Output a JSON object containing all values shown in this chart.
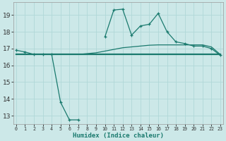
{
  "xlabel": "Humidex (Indice chaleur)",
  "x": [
    0,
    1,
    2,
    3,
    4,
    5,
    6,
    7,
    8,
    9,
    10,
    11,
    12,
    13,
    14,
    15,
    16,
    17,
    18,
    19,
    20,
    21,
    22,
    23
  ],
  "line1_y": [
    16.9,
    16.8,
    16.65,
    16.65,
    16.65,
    13.8,
    12.75,
    12.75,
    null,
    null,
    17.7,
    19.3,
    19.35,
    17.8,
    18.35,
    18.45,
    19.1,
    18.0,
    17.4,
    17.3,
    17.15,
    17.15,
    17.0,
    16.6
  ],
  "line2_y": [
    16.65,
    16.65,
    16.65,
    16.65,
    16.65,
    16.65,
    16.65,
    16.65,
    16.65,
    16.65,
    16.65,
    16.65,
    16.65,
    16.65,
    16.65,
    16.65,
    16.65,
    16.65,
    16.65,
    16.65,
    16.65,
    16.65,
    16.65,
    16.65
  ],
  "line3_y": [
    16.65,
    16.65,
    16.65,
    16.65,
    16.65,
    16.65,
    16.65,
    16.65,
    16.7,
    16.75,
    16.85,
    16.95,
    17.05,
    17.1,
    17.15,
    17.2,
    17.22,
    17.22,
    17.22,
    17.22,
    17.22,
    17.22,
    17.1,
    16.65
  ],
  "bg_color": "#cce8e8",
  "grid_color": "#b0d8d8",
  "line_color": "#1a7a6e",
  "ylim": [
    12.5,
    19.75
  ],
  "yticks": [
    13,
    14,
    15,
    16,
    17,
    18,
    19
  ],
  "xticks": [
    0,
    1,
    2,
    3,
    4,
    5,
    6,
    7,
    8,
    9,
    10,
    11,
    12,
    13,
    14,
    15,
    16,
    17,
    18,
    19,
    20,
    21,
    22,
    23
  ]
}
